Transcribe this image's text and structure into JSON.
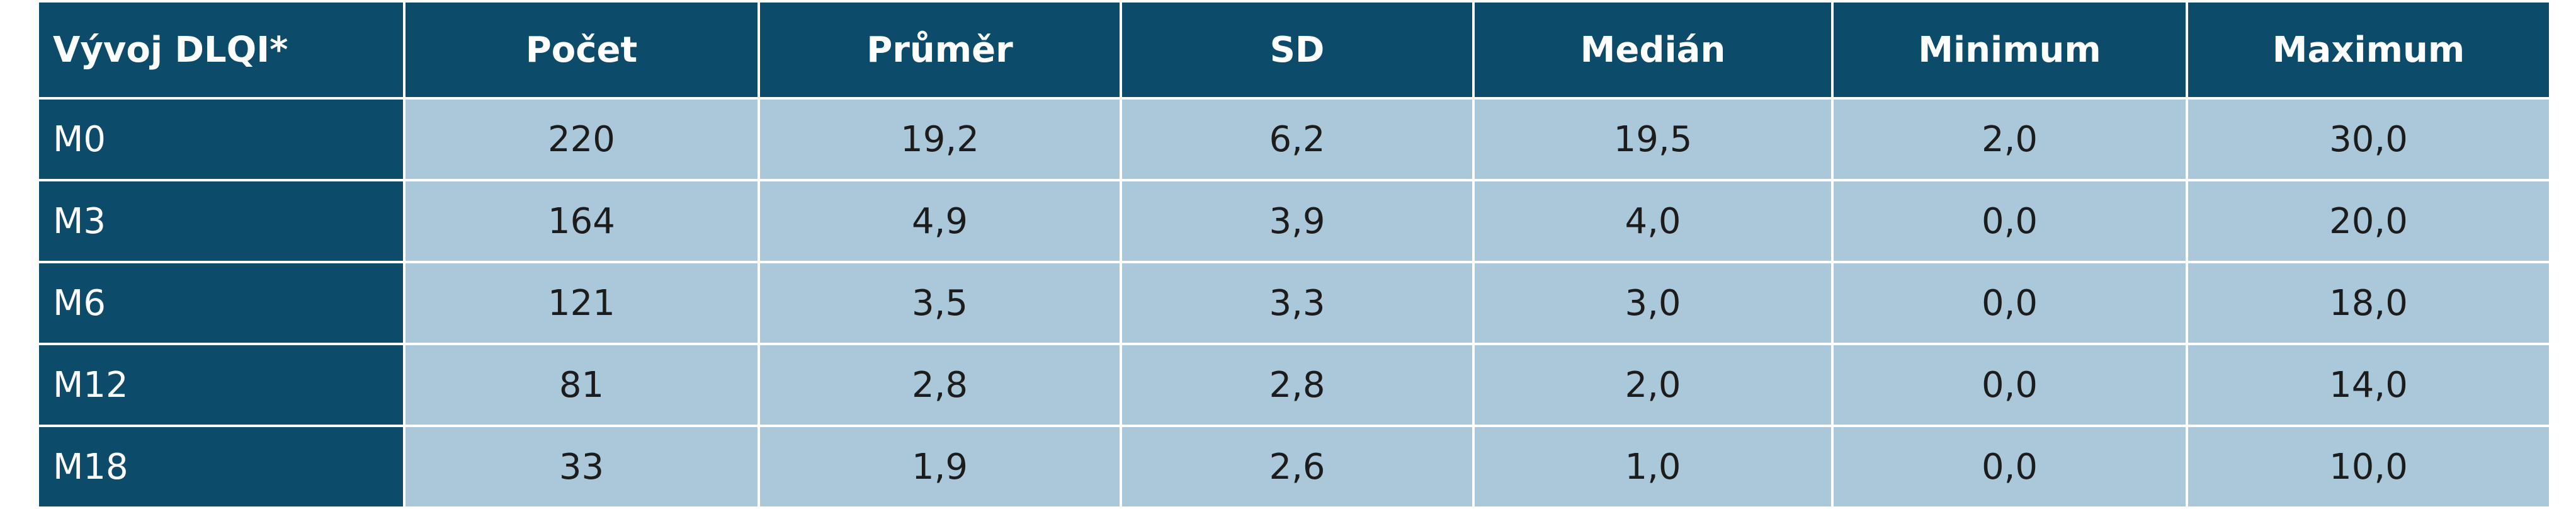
{
  "table": {
    "headers": [
      "Vývoj DLQI*",
      "Počet",
      "Průměr",
      "SD",
      "Medián",
      "Minimum",
      "Maximum"
    ],
    "rows": [
      {
        "label": "M0",
        "values": [
          "220",
          "19,2",
          "6,2",
          "19,5",
          "2,0",
          "30,0"
        ]
      },
      {
        "label": "M3",
        "values": [
          "164",
          "4,9",
          "3,9",
          "4,0",
          "0,0",
          "20,0"
        ]
      },
      {
        "label": "M6",
        "values": [
          "121",
          "3,5",
          "3,3",
          "3,0",
          "0,0",
          "18,0"
        ]
      },
      {
        "label": "M12",
        "values": [
          "81",
          "2,8",
          "2,8",
          "2,0",
          "0,0",
          "14,0"
        ]
      },
      {
        "label": "M18",
        "values": [
          "33",
          "1,9",
          "2,6",
          "1,0",
          "0,0",
          "10,0"
        ]
      }
    ]
  },
  "colors": {
    "header_bg": "#0d4b6a",
    "cell_bg": "#aac8da",
    "header_text": "#ffffff",
    "cell_text": "#1c1c1c"
  }
}
